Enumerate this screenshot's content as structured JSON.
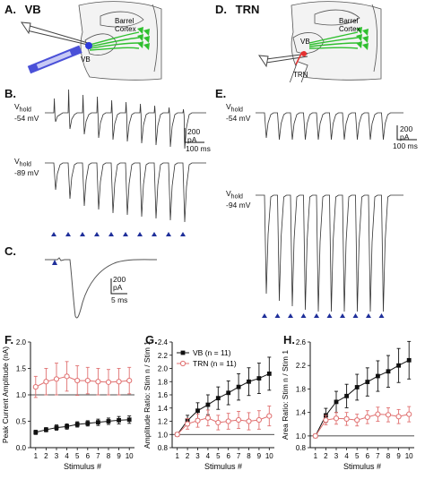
{
  "panels": {
    "A": {
      "letter": "A.",
      "title": "VB"
    },
    "D": {
      "letter": "D.",
      "title": "TRN"
    },
    "B": {
      "letter": "B."
    },
    "C": {
      "letter": "C."
    },
    "E": {
      "letter": "E."
    },
    "F": {
      "letter": "F."
    },
    "G": {
      "letter": "G."
    },
    "H": {
      "letter": "H."
    }
  },
  "schematic_labels": {
    "barrel_cortex_line1": "Barrel",
    "barrel_cortex_line2": "Cortex",
    "vb": "VB",
    "trn": "TRN"
  },
  "traces": {
    "B": {
      "top_vhold_label": "V",
      "top_vhold_sub": "hold",
      "top_vhold_value": "-54 mV",
      "bottom_vhold_label": "V",
      "bottom_vhold_sub": "hold",
      "bottom_vhold_value": "-89 mV",
      "scale_current": "200",
      "scale_current_unit": "pA",
      "scale_time": "100 ms"
    },
    "E": {
      "top_vhold_label": "V",
      "top_vhold_sub": "hold",
      "top_vhold_value": "-54 mV",
      "bottom_vhold_label": "V",
      "bottom_vhold_sub": "hold",
      "bottom_vhold_value": "-94 mV",
      "scale_current": "200",
      "scale_current_unit": "pA",
      "scale_time": "100 ms"
    },
    "C": {
      "scale_current": "200",
      "scale_current_unit": "pA",
      "scale_time": "5 ms"
    }
  },
  "colors": {
    "vb": "#111111",
    "trn": "#e07070",
    "stim_arrow": "#1f2f9a",
    "axon": "#2fbf2f",
    "electrode_vb": "#4a50d8",
    "electrode_trn": "#e53030"
  },
  "chart_data": [
    {
      "type": "line",
      "panel": "F",
      "xlabel": "Stimulus #",
      "ylabel": "Peak Current Amplitude (nA)",
      "x": [
        1,
        2,
        3,
        4,
        5,
        6,
        7,
        8,
        9,
        10
      ],
      "xlim": [
        0.5,
        10.5
      ],
      "ylim": [
        0,
        2.0
      ],
      "yticks": [
        "0.0",
        "0.5",
        "1.0",
        "1.5",
        "2.0"
      ],
      "series": [
        {
          "name": "VB",
          "values": [
            0.29,
            0.34,
            0.38,
            0.4,
            0.44,
            0.46,
            0.48,
            0.5,
            0.52,
            0.53
          ],
          "err": [
            0.04,
            0.04,
            0.05,
            0.05,
            0.05,
            0.05,
            0.06,
            0.06,
            0.07,
            0.07
          ]
        },
        {
          "name": "TRN",
          "values": [
            1.15,
            1.25,
            1.3,
            1.35,
            1.27,
            1.27,
            1.25,
            1.24,
            1.25,
            1.27
          ],
          "err": [
            0.2,
            0.25,
            0.3,
            0.28,
            0.28,
            0.25,
            0.25,
            0.24,
            0.25,
            0.25
          ]
        }
      ]
    },
    {
      "type": "line",
      "panel": "G",
      "xlabel": "Stimulus #",
      "ylabel": "Amplitude Ratio: Stim n / Stim 1",
      "x": [
        1,
        2,
        3,
        4,
        5,
        6,
        7,
        8,
        9,
        10
      ],
      "xlim": [
        0.5,
        10.5
      ],
      "ylim": [
        0.8,
        2.4
      ],
      "yticks": [
        "0.8",
        "1.0",
        "1.2",
        "1.4",
        "1.6",
        "1.8",
        "2.0",
        "2.2",
        "2.4"
      ],
      "legend": {
        "vb_label": "VB (n = 11)",
        "trn_label": "TRN (n = 11)"
      },
      "series": [
        {
          "name": "VB",
          "values": [
            1.0,
            1.21,
            1.36,
            1.45,
            1.55,
            1.63,
            1.72,
            1.8,
            1.85,
            1.92
          ],
          "err": [
            0,
            0.08,
            0.12,
            0.15,
            0.17,
            0.18,
            0.2,
            0.21,
            0.23,
            0.25
          ]
        },
        {
          "name": "TRN",
          "values": [
            1.0,
            1.16,
            1.21,
            1.25,
            1.18,
            1.2,
            1.22,
            1.2,
            1.22,
            1.28
          ],
          "err": [
            0,
            0.08,
            0.1,
            0.12,
            0.11,
            0.12,
            0.13,
            0.13,
            0.14,
            0.15
          ]
        }
      ]
    },
    {
      "type": "line",
      "panel": "H",
      "xlabel": "Stimulus #",
      "ylabel": "Area Ratio: Stim n / Stim 1",
      "x": [
        1,
        2,
        3,
        4,
        5,
        6,
        7,
        8,
        9,
        10
      ],
      "xlim": [
        0.5,
        10.5
      ],
      "ylim": [
        0.8,
        2.6
      ],
      "yticks": [
        "0.8",
        "1.0",
        "1.4",
        "1.8",
        "2.2",
        "2.6"
      ],
      "series": [
        {
          "name": "VB",
          "values": [
            1.0,
            1.35,
            1.58,
            1.68,
            1.83,
            1.92,
            2.02,
            2.1,
            2.2,
            2.29
          ],
          "err": [
            0,
            0.12,
            0.18,
            0.2,
            0.22,
            0.24,
            0.26,
            0.27,
            0.29,
            0.32
          ]
        },
        {
          "name": "TRN",
          "values": [
            1.0,
            1.27,
            1.3,
            1.29,
            1.27,
            1.32,
            1.37,
            1.36,
            1.33,
            1.37
          ],
          "err": [
            0,
            0.08,
            0.1,
            0.11,
            0.1,
            0.11,
            0.12,
            0.12,
            0.12,
            0.13
          ]
        }
      ]
    }
  ]
}
